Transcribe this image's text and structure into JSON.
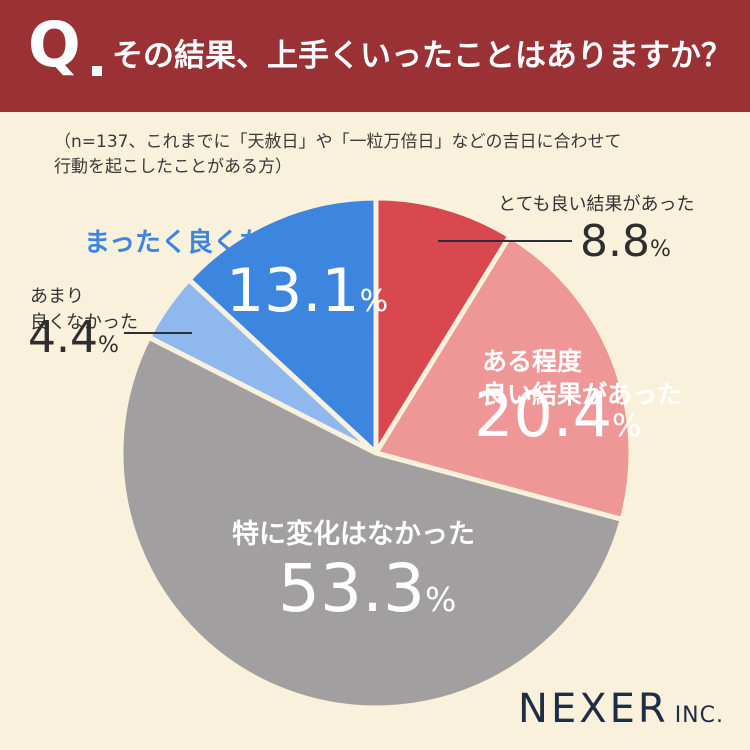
{
  "header": {
    "q_letter": "Q",
    "question": "その結果、上手くいったことはありますか？"
  },
  "note": "（n=137、これまでに「天赦日」や「一粒万倍日」などの吉日に合わせて\n 行動を起こしたことがある方）",
  "brand": {
    "name": "NEXER",
    "suffix": "INC."
  },
  "chart_data": {
    "type": "pie",
    "unit": "%",
    "slices": [
      {
        "label": "とても良い結果があった",
        "value": 8.8,
        "display": "8.8",
        "color": "#d9484e"
      },
      {
        "label": "ある程度\n良い結果があった",
        "value": 20.4,
        "display": "20.4",
        "color": "#ef9697"
      },
      {
        "label": "特に変化はなかった",
        "value": 53.3,
        "display": "53.3",
        "color": "#a29fa0"
      },
      {
        "label": "あまり\n良くなかった",
        "value": 4.4,
        "display": "4.4",
        "color": "#8fb9ee"
      },
      {
        "label": "まったく良くなかった",
        "value": 13.1,
        "display": "13.1",
        "color": "#3d86e0"
      }
    ]
  }
}
